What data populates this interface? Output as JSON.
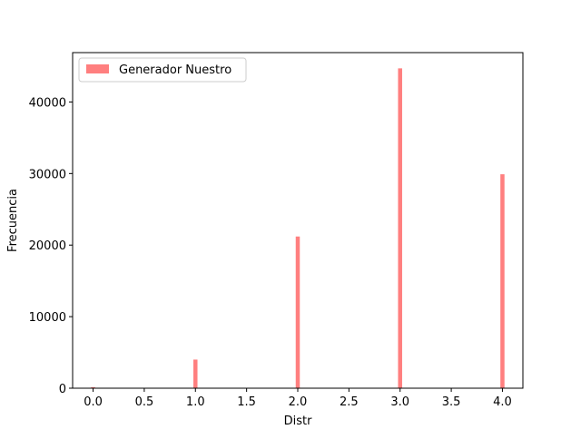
{
  "chart_data": {
    "type": "bar",
    "title": "",
    "xlabel": "Distr",
    "ylabel": "Frecuencia",
    "xlim": [
      -0.2,
      4.2
    ],
    "ylim": [
      0,
      46900
    ],
    "bin_width": 0.04,
    "xticks": [
      0.0,
      0.5,
      1.0,
      1.5,
      2.0,
      2.5,
      3.0,
      3.5,
      4.0
    ],
    "xtick_labels": [
      "0.0",
      "0.5",
      "1.0",
      "1.5",
      "2.0",
      "2.5",
      "3.0",
      "3.5",
      "4.0"
    ],
    "yticks": [
      0,
      10000,
      20000,
      30000,
      40000
    ],
    "ytick_labels": [
      "0",
      "10000",
      "20000",
      "30000",
      "40000"
    ],
    "legend": {
      "position": "upper-left",
      "show": true
    },
    "grid": false,
    "series": [
      {
        "name": "Generador Nuestro",
        "color": "#ff0000",
        "alpha": 0.5,
        "bins": [
          {
            "x": 0.0,
            "value": 150
          },
          {
            "x": 1.0,
            "value": 4000
          },
          {
            "x": 2.0,
            "value": 21200
          },
          {
            "x": 3.0,
            "value": 44700
          },
          {
            "x": 4.0,
            "value": 29900
          }
        ]
      }
    ]
  }
}
